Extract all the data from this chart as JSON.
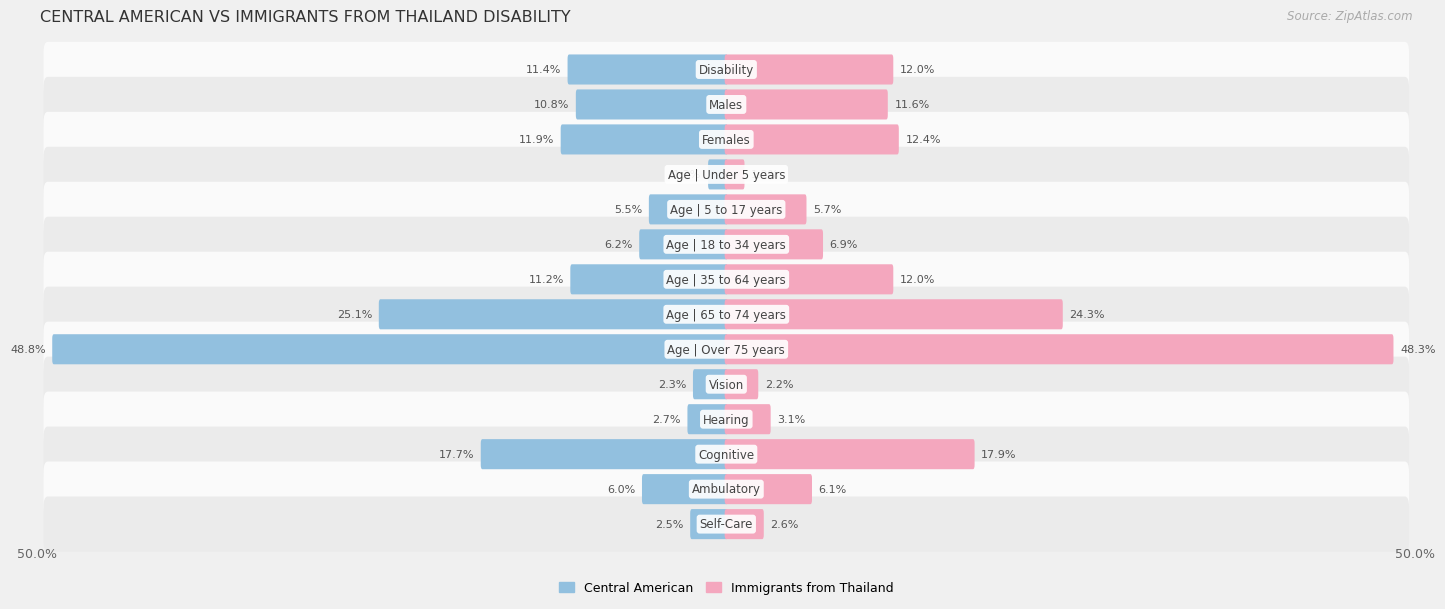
{
  "title": "CENTRAL AMERICAN VS IMMIGRANTS FROM THAILAND DISABILITY",
  "source": "Source: ZipAtlas.com",
  "categories": [
    "Disability",
    "Males",
    "Females",
    "Age | Under 5 years",
    "Age | 5 to 17 years",
    "Age | 18 to 34 years",
    "Age | 35 to 64 years",
    "Age | 65 to 74 years",
    "Age | Over 75 years",
    "Vision",
    "Hearing",
    "Cognitive",
    "Ambulatory",
    "Self-Care"
  ],
  "left_values": [
    11.4,
    10.8,
    11.9,
    1.2,
    5.5,
    6.2,
    11.2,
    25.1,
    48.8,
    2.3,
    2.7,
    17.7,
    6.0,
    2.5
  ],
  "right_values": [
    12.0,
    11.6,
    12.4,
    1.2,
    5.7,
    6.9,
    12.0,
    24.3,
    48.3,
    2.2,
    3.1,
    17.9,
    6.1,
    2.6
  ],
  "left_color": "#92c0df",
  "right_color": "#f4a7be",
  "max_value": 50.0,
  "legend_left": "Central American",
  "legend_right": "Immigrants from Thailand",
  "bg_color": "#f0f0f0",
  "row_color_even": "#fafafa",
  "row_color_odd": "#ebebeb",
  "title_fontsize": 11.5,
  "label_fontsize": 8.5,
  "value_fontsize": 8.0,
  "source_fontsize": 8.5
}
